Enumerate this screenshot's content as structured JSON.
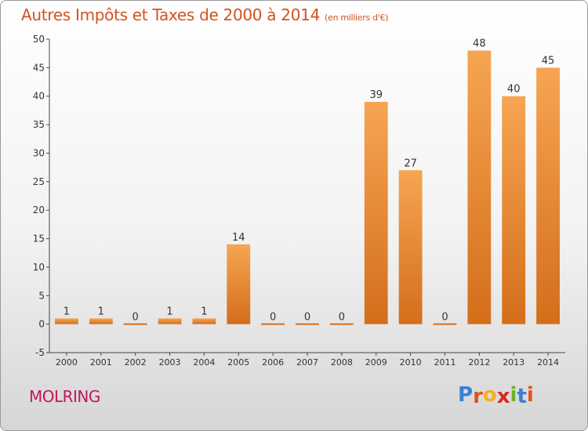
{
  "title": "Autres Impôts et Taxes de 2000 à 2014",
  "title_unit": "(en milliers d'€)",
  "commune": "MOLRING",
  "logo": {
    "text": "Proxiti",
    "colors": [
      "#3a7fd6",
      "#e0531e",
      "#f0b21c",
      "#d8291e",
      "#6ab42d",
      "#3a7fd6",
      "#e0531e"
    ]
  },
  "colors": {
    "title": "#d2521f",
    "commune": "#c2185b",
    "bar_light": "#f6a552",
    "bar_dark": "#d46e1b",
    "axis": "#444444"
  },
  "chart_data": {
    "type": "bar",
    "title": "Autres Impôts et Taxes de 2000 à 2014",
    "ylabel": "",
    "xlabel": "",
    "ylim": [
      -5,
      50
    ],
    "yticks": [
      -5,
      0,
      5,
      10,
      15,
      20,
      25,
      30,
      35,
      40,
      45,
      50
    ],
    "grid": false,
    "categories": [
      "2000",
      "2001",
      "2002",
      "2003",
      "2004",
      "2005",
      "2006",
      "2007",
      "2008",
      "2009",
      "2010",
      "2011",
      "2012",
      "2013",
      "2014"
    ],
    "values": [
      1,
      1,
      0,
      1,
      1,
      14,
      0,
      0,
      0,
      39,
      27,
      0,
      48,
      40,
      45
    ]
  }
}
